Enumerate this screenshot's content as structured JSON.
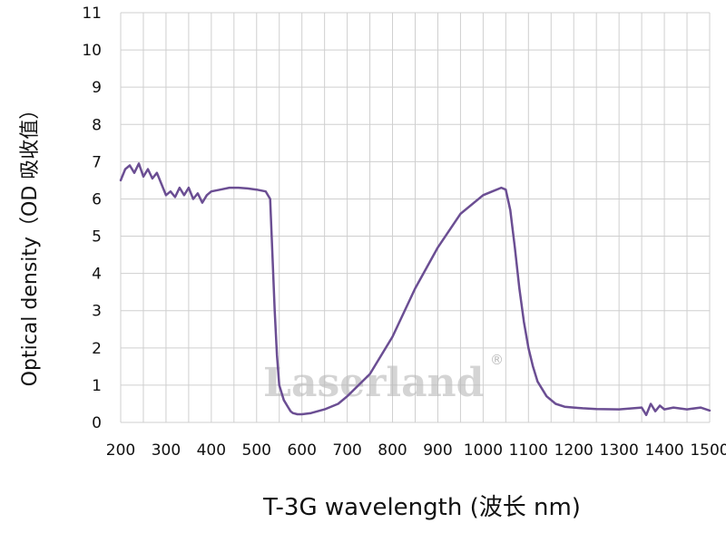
{
  "chart_data": {
    "type": "line",
    "xlabel": "T-3G wavelength (波长 nm)",
    "ylabel": "Optical density（OD 吸收值）",
    "xlim": [
      200,
      1500
    ],
    "ylim": [
      0,
      11
    ],
    "x_ticks": [
      200,
      300,
      400,
      500,
      600,
      700,
      800,
      900,
      1000,
      1100,
      1200,
      1300,
      1400,
      1500
    ],
    "y_ticks": [
      0,
      1,
      2,
      3,
      4,
      5,
      6,
      7,
      8,
      9,
      10,
      11
    ],
    "grid": true,
    "line_color": "#6b4e93",
    "series": [
      {
        "x": [
          200,
          210,
          220,
          230,
          240,
          250,
          260,
          270,
          280,
          290,
          300,
          310,
          320,
          330,
          340,
          350,
          360,
          370,
          380,
          390,
          400,
          420,
          440,
          460,
          480,
          500,
          520,
          530,
          535,
          540,
          545,
          550,
          560,
          570,
          575,
          580,
          590,
          600,
          620,
          650,
          680,
          700,
          750,
          800,
          850,
          900,
          950,
          1000,
          1020,
          1040,
          1050,
          1060,
          1070,
          1080,
          1090,
          1100,
          1110,
          1120,
          1140,
          1160,
          1180,
          1200,
          1220,
          1250,
          1300,
          1350,
          1360,
          1370,
          1380,
          1390,
          1400,
          1420,
          1450,
          1480,
          1500
        ],
        "values": [
          6.5,
          6.8,
          6.9,
          6.7,
          6.95,
          6.6,
          6.8,
          6.55,
          6.7,
          6.4,
          6.1,
          6.2,
          6.05,
          6.3,
          6.1,
          6.3,
          6.0,
          6.15,
          5.9,
          6.1,
          6.2,
          6.25,
          6.3,
          6.3,
          6.28,
          6.25,
          6.2,
          6.0,
          4.5,
          3.0,
          1.8,
          1.0,
          0.6,
          0.4,
          0.3,
          0.25,
          0.22,
          0.22,
          0.25,
          0.35,
          0.5,
          0.7,
          1.3,
          2.3,
          3.6,
          4.7,
          5.6,
          6.1,
          6.2,
          6.3,
          6.25,
          5.7,
          4.7,
          3.6,
          2.7,
          2.0,
          1.5,
          1.1,
          0.7,
          0.5,
          0.42,
          0.4,
          0.38,
          0.36,
          0.35,
          0.4,
          0.2,
          0.5,
          0.3,
          0.45,
          0.35,
          0.4,
          0.35,
          0.4,
          0.32
        ]
      }
    ]
  },
  "watermark": {
    "text": "Laserland",
    "mark": "®"
  }
}
